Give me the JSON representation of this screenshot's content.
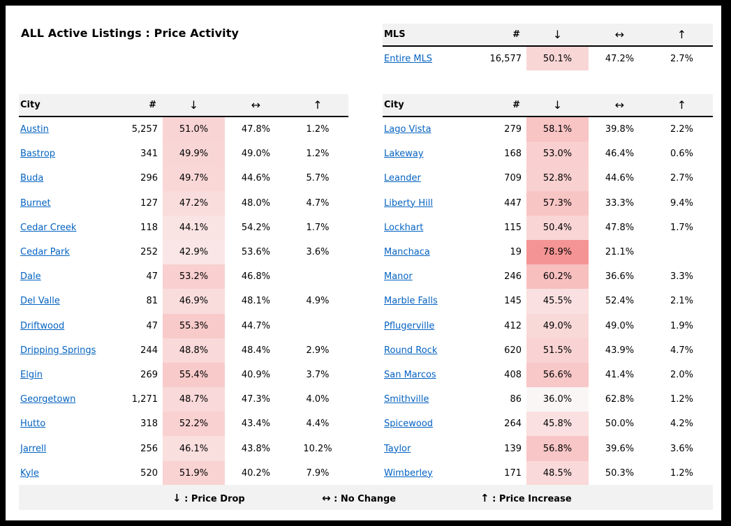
{
  "title": "ALL Active Listings : Price Activity",
  "columns": {
    "city": "City",
    "mls": "MLS",
    "count": "#",
    "down": "↓",
    "same": "↔",
    "up": "↑"
  },
  "mls_row": {
    "name": "Entire MLS",
    "count": "16,577",
    "down": "50.1%",
    "down_pct": 50.1,
    "same": "47.2%",
    "up": "2.7%"
  },
  "left_cities": [
    {
      "name": "Austin",
      "count": "5,257",
      "down": "51.0%",
      "down_pct": 51.0,
      "same": "47.8%",
      "up": "1.2%"
    },
    {
      "name": "Bastrop",
      "count": "341",
      "down": "49.9%",
      "down_pct": 49.9,
      "same": "49.0%",
      "up": "1.2%"
    },
    {
      "name": "Buda",
      "count": "296",
      "down": "49.7%",
      "down_pct": 49.7,
      "same": "44.6%",
      "up": "5.7%"
    },
    {
      "name": "Burnet",
      "count": "127",
      "down": "47.2%",
      "down_pct": 47.2,
      "same": "48.0%",
      "up": "4.7%"
    },
    {
      "name": "Cedar Creek",
      "count": "118",
      "down": "44.1%",
      "down_pct": 44.1,
      "same": "54.2%",
      "up": "1.7%"
    },
    {
      "name": "Cedar Park",
      "count": "252",
      "down": "42.9%",
      "down_pct": 42.9,
      "same": "53.6%",
      "up": "3.6%"
    },
    {
      "name": "Dale",
      "count": "47",
      "down": "53.2%",
      "down_pct": 53.2,
      "same": "46.8%",
      "up": ""
    },
    {
      "name": "Del Valle",
      "count": "81",
      "down": "46.9%",
      "down_pct": 46.9,
      "same": "48.1%",
      "up": "4.9%"
    },
    {
      "name": "Driftwood",
      "count": "47",
      "down": "55.3%",
      "down_pct": 55.3,
      "same": "44.7%",
      "up": ""
    },
    {
      "name": "Dripping Springs",
      "count": "244",
      "down": "48.8%",
      "down_pct": 48.8,
      "same": "48.4%",
      "up": "2.9%"
    },
    {
      "name": "Elgin",
      "count": "269",
      "down": "55.4%",
      "down_pct": 55.4,
      "same": "40.9%",
      "up": "3.7%"
    },
    {
      "name": "Georgetown",
      "count": "1,271",
      "down": "48.7%",
      "down_pct": 48.7,
      "same": "47.3%",
      "up": "4.0%"
    },
    {
      "name": "Hutto",
      "count": "318",
      "down": "52.2%",
      "down_pct": 52.2,
      "same": "43.4%",
      "up": "4.4%"
    },
    {
      "name": "Jarrell",
      "count": "256",
      "down": "46.1%",
      "down_pct": 46.1,
      "same": "43.8%",
      "up": "10.2%"
    },
    {
      "name": "Kyle",
      "count": "520",
      "down": "51.9%",
      "down_pct": 51.9,
      "same": "40.2%",
      "up": "7.9%"
    }
  ],
  "right_cities": [
    {
      "name": "Lago Vista",
      "count": "279",
      "down": "58.1%",
      "down_pct": 58.1,
      "same": "39.8%",
      "up": "2.2%"
    },
    {
      "name": "Lakeway",
      "count": "168",
      "down": "53.0%",
      "down_pct": 53.0,
      "same": "46.4%",
      "up": "0.6%"
    },
    {
      "name": "Leander",
      "count": "709",
      "down": "52.8%",
      "down_pct": 52.8,
      "same": "44.6%",
      "up": "2.7%"
    },
    {
      "name": "Liberty Hill",
      "count": "447",
      "down": "57.3%",
      "down_pct": 57.3,
      "same": "33.3%",
      "up": "9.4%"
    },
    {
      "name": "Lockhart",
      "count": "115",
      "down": "50.4%",
      "down_pct": 50.4,
      "same": "47.8%",
      "up": "1.7%"
    },
    {
      "name": "Manchaca",
      "count": "19",
      "down": "78.9%",
      "down_pct": 78.9,
      "same": "21.1%",
      "up": ""
    },
    {
      "name": "Manor",
      "count": "246",
      "down": "60.2%",
      "down_pct": 60.2,
      "same": "36.6%",
      "up": "3.3%"
    },
    {
      "name": "Marble Falls",
      "count": "145",
      "down": "45.5%",
      "down_pct": 45.5,
      "same": "52.4%",
      "up": "2.1%"
    },
    {
      "name": "Pflugerville",
      "count": "412",
      "down": "49.0%",
      "down_pct": 49.0,
      "same": "49.0%",
      "up": "1.9%"
    },
    {
      "name": "Round Rock",
      "count": "620",
      "down": "51.5%",
      "down_pct": 51.5,
      "same": "43.9%",
      "up": "4.7%"
    },
    {
      "name": "San Marcos",
      "count": "408",
      "down": "56.6%",
      "down_pct": 56.6,
      "same": "41.4%",
      "up": "2.0%"
    },
    {
      "name": "Smithville",
      "count": "86",
      "down": "36.0%",
      "down_pct": 36.0,
      "same": "62.8%",
      "up": "1.2%"
    },
    {
      "name": "Spicewood",
      "count": "264",
      "down": "45.8%",
      "down_pct": 45.8,
      "same": "50.0%",
      "up": "4.2%"
    },
    {
      "name": "Taylor",
      "count": "139",
      "down": "56.8%",
      "down_pct": 56.8,
      "same": "39.6%",
      "up": "3.6%"
    },
    {
      "name": "Wimberley",
      "count": "171",
      "down": "48.5%",
      "down_pct": 48.5,
      "same": "50.3%",
      "up": "1.2%"
    }
  ],
  "legend": {
    "drop_symbol": "↓",
    "drop_label": ": Price Drop",
    "nochange_symbol": "↔",
    "nochange_label": ": No Change",
    "increase_symbol": "↑",
    "increase_label": ": Price Increase"
  },
  "colors": {
    "link": "#0563c1",
    "header_bg": "#f2f2f2",
    "heat_low": "#fbf6f6",
    "heat_high": "#f59494"
  }
}
